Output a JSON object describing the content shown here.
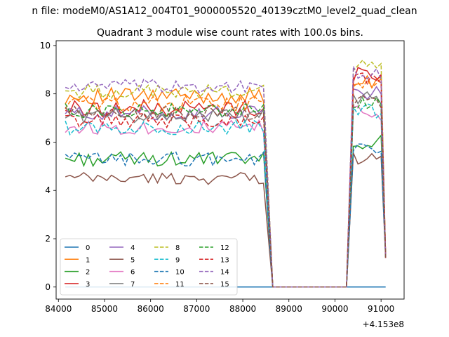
{
  "figure": {
    "suptitle": "n file: modeM0/AS1A12_004T01_9000005520_40139cztM0_level2_quad_clean",
    "title": "Quadrant 3 module wise count rates with 100.0s bins.",
    "offset_label": "+4.153e8"
  },
  "chart_data": {
    "type": "line",
    "title": "Quadrant 3 module wise count rates with 100.0s bins.",
    "xlabel": "",
    "ylabel": "",
    "x_offset": 415300000,
    "xlim": [
      83950,
      91500
    ],
    "ylim": [
      -0.5,
      10.2
    ],
    "x_ticks": [
      84000,
      85000,
      86000,
      87000,
      88000,
      89000,
      90000,
      91000
    ],
    "x_tick_labels": [
      "84000",
      "85000",
      "86000",
      "87000",
      "88000",
      "89000",
      "90000",
      "91000"
    ],
    "y_ticks": [
      0,
      2,
      4,
      6,
      8,
      10
    ],
    "y_tick_labels": [
      "0",
      "2",
      "4",
      "6",
      "8",
      "10"
    ],
    "grid": false,
    "legend": {
      "placement": "lower-left",
      "columns": 4
    },
    "segments": {
      "start1": 84150,
      "end1": 88450,
      "gap_start": 88650,
      "gap_end": 90250,
      "start2": 90400,
      "end2": 91150,
      "step": 100
    },
    "series": [
      {
        "name": "0",
        "color": "#1f77b4",
        "dash": "solid",
        "base1": 0.0,
        "base2": 0.0,
        "amp": 0.0
      },
      {
        "name": "1",
        "color": "#ff7f0e",
        "dash": "solid",
        "base1": 7.9,
        "base2": 8.4,
        "amp": 0.35
      },
      {
        "name": "2",
        "color": "#2ca02c",
        "dash": "solid",
        "base1": 5.3,
        "base2": 6.0,
        "amp": 0.3
      },
      {
        "name": "3",
        "color": "#d62728",
        "dash": "solid",
        "base1": 7.4,
        "base2": 8.8,
        "amp": 0.35
      },
      {
        "name": "4",
        "color": "#9467bd",
        "dash": "solid",
        "base1": 7.2,
        "base2": 8.0,
        "amp": 0.3
      },
      {
        "name": "5",
        "color": "#8c564b",
        "dash": "solid",
        "base1": 4.5,
        "base2": 5.3,
        "amp": 0.25
      },
      {
        "name": "6",
        "color": "#e377c2",
        "dash": "solid",
        "base1": 6.6,
        "base2": 7.2,
        "amp": 0.3
      },
      {
        "name": "7",
        "color": "#7f7f7f",
        "dash": "solid",
        "base1": 7.1,
        "base2": 7.8,
        "amp": 0.3
      },
      {
        "name": "8",
        "color": "#bcbd22",
        "dash": "dashed",
        "base1": 8.1,
        "base2": 9.1,
        "amp": 0.3
      },
      {
        "name": "9",
        "color": "#17becf",
        "dash": "dashed",
        "base1": 6.6,
        "base2": 7.3,
        "amp": 0.3
      },
      {
        "name": "10",
        "color": "#1f77b4",
        "dash": "dashed",
        "base1": 5.3,
        "base2": 5.7,
        "amp": 0.3
      },
      {
        "name": "11",
        "color": "#ff7f0e",
        "dash": "dashed",
        "base1": 7.6,
        "base2": 8.3,
        "amp": 0.35
      },
      {
        "name": "12",
        "color": "#2ca02c",
        "dash": "dashed",
        "base1": 7.3,
        "base2": 7.6,
        "amp": 0.3
      },
      {
        "name": "13",
        "color": "#d62728",
        "dash": "dashed",
        "base1": 6.9,
        "base2": 8.6,
        "amp": 0.3
      },
      {
        "name": "14",
        "color": "#9467bd",
        "dash": "dashed",
        "base1": 8.3,
        "base2": 8.9,
        "amp": 0.3
      },
      {
        "name": "15",
        "color": "#8c564b",
        "dash": "dashed",
        "base1": 7.2,
        "base2": 7.7,
        "amp": 0.3
      }
    ]
  }
}
